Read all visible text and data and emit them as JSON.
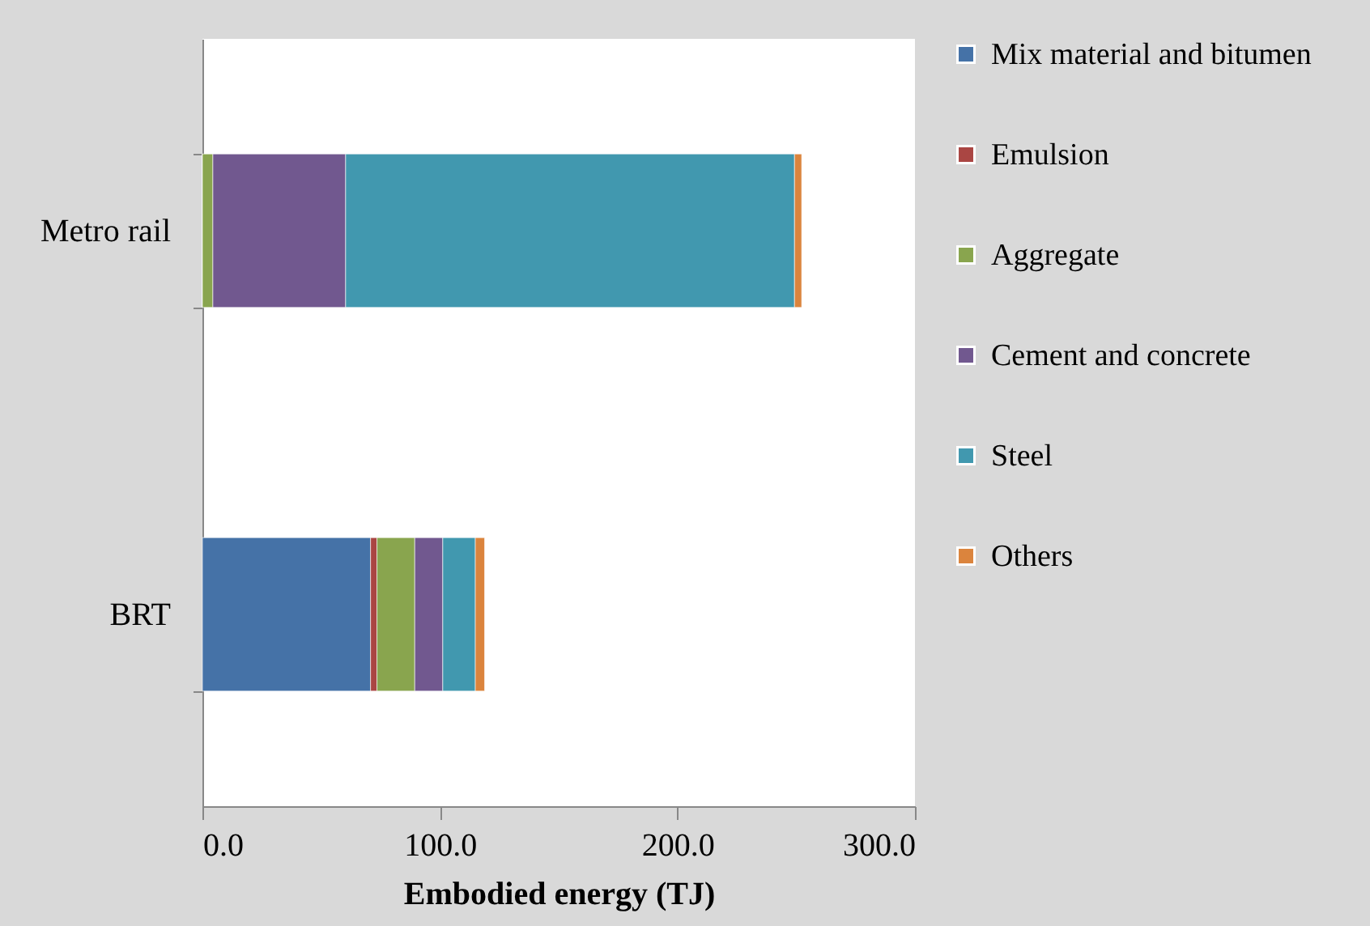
{
  "chart_data": {
    "type": "bar",
    "orientation": "horizontal",
    "stacked": true,
    "xlabel": "Embodied energy (TJ)",
    "categories": [
      "Metro rail",
      "BRT"
    ],
    "series": [
      {
        "name": "Mix material and bitumen",
        "color": "#4572a7",
        "values": [
          0,
          70.8
        ]
      },
      {
        "name": "Emulsion",
        "color": "#aa4643",
        "values": [
          0,
          2.7
        ]
      },
      {
        "name": "Aggregate",
        "color": "#89a54e",
        "values": [
          4.4,
          15.9
        ]
      },
      {
        "name": "Cement and concrete",
        "color": "#71588f",
        "values": [
          55.9,
          11.8
        ]
      },
      {
        "name": "Steel",
        "color": "#4198af",
        "values": [
          189,
          13.7
        ]
      },
      {
        "name": "Others",
        "color": "#db843d",
        "values": [
          3,
          3.9
        ]
      }
    ],
    "xlim": [
      0,
      300
    ],
    "xticks": [
      {
        "value": 0,
        "label": "0.0"
      },
      {
        "value": 100,
        "label": "100.0"
      },
      {
        "value": 200,
        "label": "200.0"
      },
      {
        "value": 300,
        "label": "300.0"
      }
    ],
    "grid": false,
    "legend": "right"
  }
}
